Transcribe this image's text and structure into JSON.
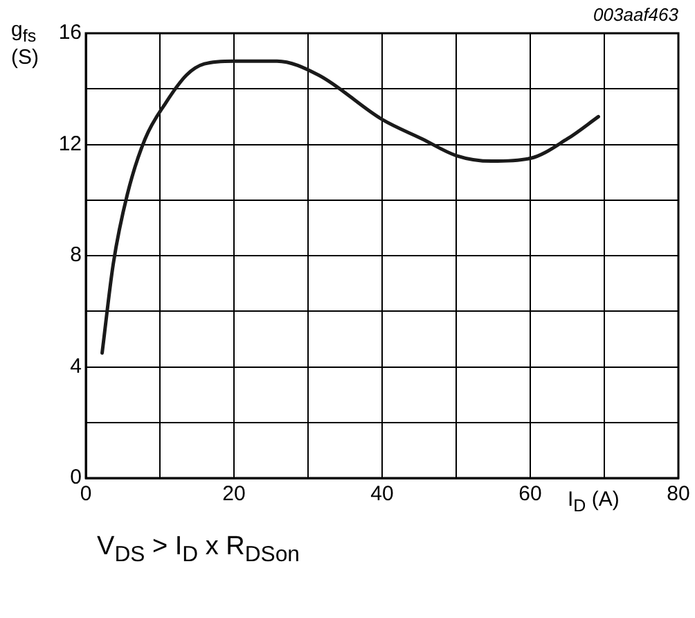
{
  "chart_data": {
    "type": "line",
    "xlabel": "I$_{D}$ (A)",
    "ylabel": "g$_{fs}$ (S)",
    "annotations": [
      "003aaf463",
      "V$_{DS}$ > I$_{D}$ x R$_{DSon}$"
    ],
    "x": [
      2.2,
      3.7,
      5.6,
      8,
      10.8,
      13.6,
      16,
      20,
      25.8,
      31.4,
      40,
      45.4,
      50,
      54.8,
      60,
      65,
      69.2
    ],
    "series": [
      {
        "color": "#1a1a1a",
        "values": [
          4.5,
          7.7,
          10.2,
          12.2,
          13.5,
          14.5,
          14.9,
          15.0,
          15.0,
          14.5,
          12.9,
          12.2,
          11.6,
          11.4,
          11.5,
          12.2,
          13.0
        ]
      }
    ],
    "xlim": [
      0,
      80
    ],
    "xticks": [
      0,
      {
        "value": 10,
        "label": null
      },
      20,
      {
        "value": 30,
        "label": null
      },
      40,
      {
        "value": 50,
        "label": null
      },
      60,
      {
        "value": 70,
        "label": null
      },
      80
    ],
    "ylim": [
      0,
      16
    ],
    "yticks": [
      0,
      {
        "value": 2,
        "label": null
      },
      4,
      {
        "value": 6,
        "label": null
      },
      8,
      {
        "value": 10,
        "label": null
      },
      12,
      {
        "value": 14,
        "label": null
      },
      16
    ],
    "grid": true,
    "legend": false,
    "marker": "none",
    "line_style": "solid"
  }
}
